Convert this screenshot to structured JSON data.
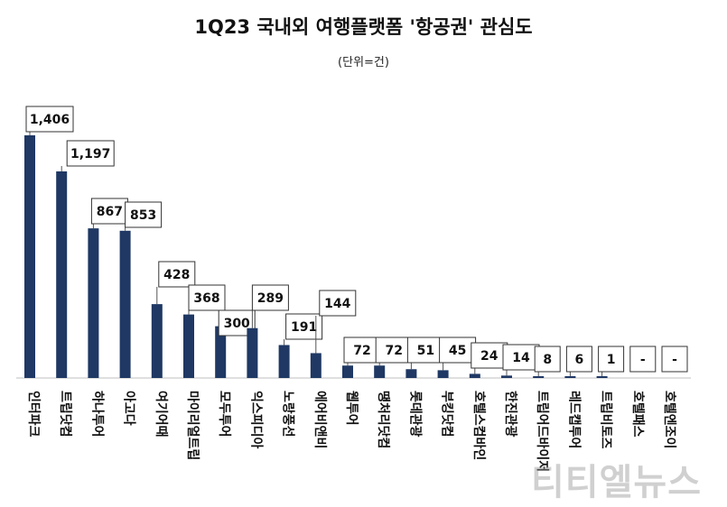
{
  "chart_data": {
    "type": "bar",
    "title": "1Q23 국내외 여행플랫폼 '항공권' 관심도",
    "subtitle": "(단위=건)",
    "categories": [
      "인터파크",
      "트립닷컴",
      "하나투어",
      "아고다",
      "여기어때",
      "마이리얼트립",
      "모두투어",
      "익스피디아",
      "노랑풍선",
      "에어비앤비",
      "웹투어",
      "땡처리닷컴",
      "롯데관광",
      "부킹닷컴",
      "호텔스컴바인",
      "한진관광",
      "트립어드바이저",
      "레드캡투어",
      "트립비토즈",
      "호텔패스",
      "호텔엔조이"
    ],
    "values": [
      1406,
      1197,
      867,
      853,
      428,
      368,
      300,
      289,
      191,
      144,
      72,
      72,
      51,
      45,
      24,
      14,
      8,
      6,
      1,
      0,
      0
    ],
    "value_labels": [
      "1,406",
      "1,197",
      "867",
      "853",
      "428",
      "368",
      "300",
      "289",
      "191",
      "144",
      "72",
      "72",
      "51",
      "45",
      "24",
      "14",
      "8",
      "6",
      "1",
      "-",
      "-"
    ],
    "bar_color": "#1f3864",
    "ylim": [
      0,
      1406
    ],
    "grid": false
  },
  "watermark": "티티엘뉴스"
}
